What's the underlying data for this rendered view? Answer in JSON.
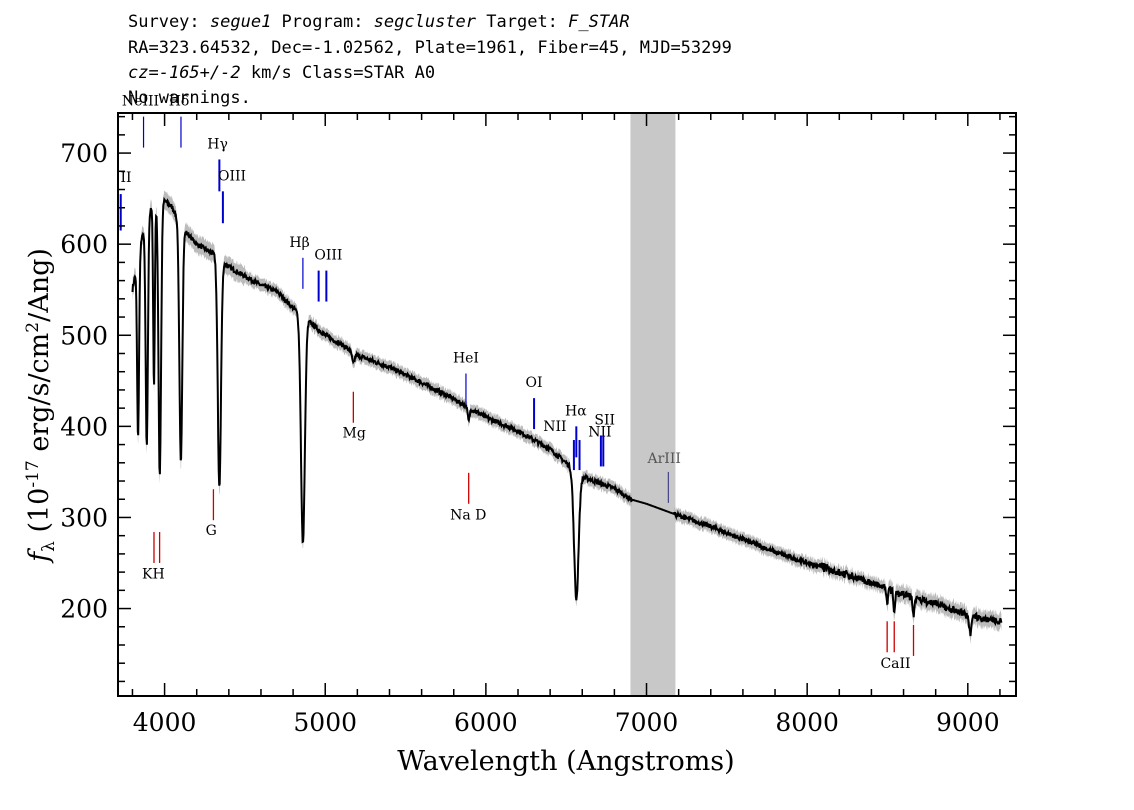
{
  "header": {
    "line1": {
      "survey_label": "Survey: ",
      "survey": "segue1",
      "program_label": " Program: ",
      "program": "segcluster",
      "target_label": " Target: ",
      "target": "F_STAR"
    },
    "line2": "RA=323.64532, Dec=-1.02562, Plate=1961, Fiber=45, MJD=53299",
    "line3": {
      "cz_label": "cz=",
      "cz": "-165+/-2",
      "rest": " km/s Class=STAR A0"
    },
    "line4": "No warnings."
  },
  "chart_data": {
    "type": "line",
    "xlabel": "Wavelength (Angstroms)",
    "ylabel": "f_λ (10^-17 erg/s/cm^2/Ang)",
    "xlim": [
      3710,
      9300
    ],
    "ylim": [
      104,
      744
    ],
    "xticks": [
      4000,
      5000,
      6000,
      7000,
      8000,
      9000
    ],
    "yticks": [
      200,
      300,
      400,
      500,
      600,
      700
    ],
    "masked_region": [
      6900,
      7180
    ],
    "continuum": [
      [
        3800,
        550
      ],
      [
        3850,
        600
      ],
      [
        3900,
        635
      ],
      [
        3950,
        645
      ],
      [
        4000,
        648
      ],
      [
        4050,
        640
      ],
      [
        4100,
        620
      ],
      [
        4200,
        600
      ],
      [
        4300,
        590
      ],
      [
        4400,
        575
      ],
      [
        4500,
        565
      ],
      [
        4600,
        555
      ],
      [
        4700,
        548
      ],
      [
        4800,
        530
      ],
      [
        4900,
        515
      ],
      [
        5000,
        500
      ],
      [
        5100,
        490
      ],
      [
        5200,
        478
      ],
      [
        5400,
        465
      ],
      [
        5600,
        448
      ],
      [
        5800,
        430
      ],
      [
        6000,
        410
      ],
      [
        6200,
        395
      ],
      [
        6400,
        375
      ],
      [
        6500,
        360
      ],
      [
        6600,
        345
      ],
      [
        6700,
        338
      ],
      [
        6800,
        332
      ],
      [
        6900,
        320
      ],
      [
        7000,
        315
      ],
      [
        7200,
        302
      ],
      [
        7400,
        290
      ],
      [
        7600,
        276
      ],
      [
        7800,
        262
      ],
      [
        8000,
        250
      ],
      [
        8200,
        240
      ],
      [
        8400,
        228
      ],
      [
        8600,
        215
      ],
      [
        8800,
        205
      ],
      [
        9000,
        193
      ],
      [
        9200,
        185
      ]
    ],
    "absorption": [
      {
        "center": 3835,
        "width": 6,
        "depth": 200
      },
      {
        "center": 3889,
        "width": 7,
        "depth": 250
      },
      {
        "center": 3934,
        "width": 5,
        "depth": 200
      },
      {
        "center": 3970,
        "width": 8,
        "depth": 300
      },
      {
        "center": 4101,
        "width": 9,
        "depth": 260
      },
      {
        "center": 4341,
        "width": 10,
        "depth": 250
      },
      {
        "center": 4861,
        "width": 12,
        "depth": 250
      },
      {
        "center": 5175,
        "width": 8,
        "depth": 12
      },
      {
        "center": 5893,
        "width": 6,
        "depth": 15
      },
      {
        "center": 6563,
        "width": 14,
        "depth": 140
      },
      {
        "center": 8498,
        "width": 5,
        "depth": 15
      },
      {
        "center": 8542,
        "width": 5,
        "depth": 25
      },
      {
        "center": 8662,
        "width": 5,
        "depth": 20
      },
      {
        "center": 9015,
        "width": 6,
        "depth": 20
      }
    ],
    "emission_lines": [
      {
        "label": "II",
        "wl": 3727,
        "y1": 615,
        "y2": 655,
        "lx": 3727,
        "ly": 668
      },
      {
        "label": "NeIII",
        "wl": 3869,
        "y1": 706,
        "y2": 740,
        "lx": 3850,
        "ly": 752
      },
      {
        "label": "Hδ",
        "wl": 4102,
        "y1": 706,
        "y2": 740,
        "lx": 4090,
        "ly": 752
      },
      {
        "label": "Hγ",
        "wl": 4341,
        "y1": 658,
        "y2": 693,
        "lx": 4330,
        "ly": 705
      },
      {
        "label": "OIII",
        "wl": 4363,
        "y1": 623,
        "y2": 658,
        "lx": 4420,
        "ly": 670
      },
      {
        "label": "Hβ",
        "wl": 4861,
        "y1": 551,
        "y2": 585,
        "lx": 4840,
        "ly": 597
      },
      {
        "label": "OIII",
        "wl": 4959,
        "y1": 537,
        "y2": 571,
        "lx": 5020,
        "ly": 583
      },
      {
        "label": "OIII",
        "wl": 5007,
        "y1": 537,
        "y2": 571,
        "lx": null,
        "ly": null
      },
      {
        "label": "HeI",
        "wl": 5876,
        "y1": 424,
        "y2": 458,
        "lx": 5876,
        "ly": 470
      },
      {
        "label": "OI",
        "wl": 6300,
        "y1": 397,
        "y2": 431,
        "lx": 6300,
        "ly": 443
      },
      {
        "label": "NII",
        "wl": 6548,
        "y1": 352,
        "y2": 385,
        "lx": 6430,
        "ly": 395
      },
      {
        "label": "Hα",
        "wl": 6563,
        "y1": 366,
        "y2": 400,
        "lx": 6560,
        "ly": 412
      },
      {
        "label": "NII",
        "wl": 6583,
        "y1": 352,
        "y2": 385,
        "lx": null,
        "ly": null
      },
      {
        "label": "NII",
        "wl": 6716,
        "y1": 356,
        "y2": 390,
        "lx": 6710,
        "ly": 389
      },
      {
        "label": "SII",
        "wl": 6731,
        "y1": 356,
        "y2": 390,
        "lx": 6740,
        "ly": 402
      },
      {
        "label": "ArIII",
        "wl": 7136,
        "y1": 316,
        "y2": 350,
        "lx": 7110,
        "ly": 360
      }
    ],
    "abs_lines": [
      {
        "label": "Mg",
        "wl": 5175,
        "y1": 404,
        "y2": 438,
        "lx": 5180,
        "ly": 388
      },
      {
        "label": "G",
        "wl": 4304,
        "y1": 297,
        "y2": 331,
        "lx": 4290,
        "ly": 281
      },
      {
        "label": "KH",
        "wl": 3934,
        "y1": 250,
        "y2": 284,
        "lx": 3930,
        "ly": 233
      },
      {
        "label": "",
        "wl": 3969,
        "y1": 250,
        "y2": 284,
        "lx": null,
        "ly": null
      },
      {
        "label": "Na  D",
        "wl": 5893,
        "y1": 315,
        "y2": 349,
        "lx": 5890,
        "ly": 298
      },
      {
        "label": "CaII",
        "wl": 8498,
        "y1": 152,
        "y2": 186,
        "lx": 8550,
        "ly": 135
      },
      {
        "label": "",
        "wl": 8542,
        "y1": 152,
        "y2": 186,
        "lx": null,
        "ly": null
      },
      {
        "label": "",
        "wl": 8662,
        "y1": 148,
        "y2": 182,
        "lx": null,
        "ly": null
      }
    ],
    "colors": {
      "spectrum": "#000000",
      "error_band": "#bbbbbb",
      "mask": "#c8c8c8",
      "emission": "#0000cc",
      "absorption": "#cc0000",
      "arIII": "#444488"
    }
  }
}
